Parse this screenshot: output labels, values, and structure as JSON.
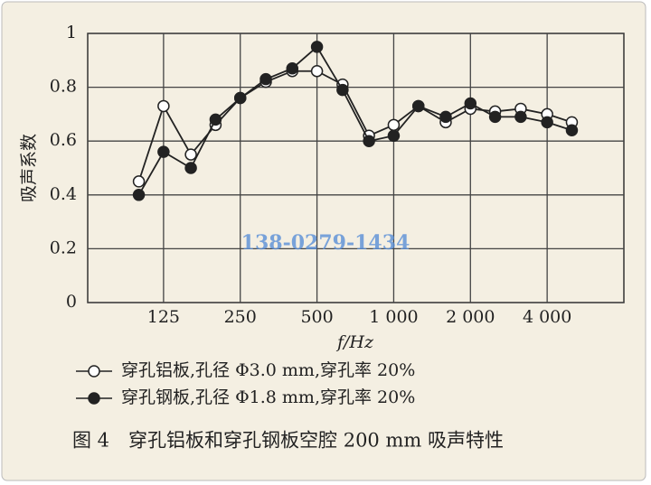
{
  "chart_data": {
    "type": "line",
    "x_label": "f/Hz",
    "y_label": "吸声系数",
    "x": [
      100,
      125,
      160,
      200,
      250,
      315,
      400,
      500,
      630,
      800,
      1000,
      1250,
      1600,
      2000,
      2500,
      3150,
      4000,
      5000
    ],
    "series": [
      {
        "name": "穿孔铝板,孔径 Φ3.0 mm,穿孔率 20%",
        "color": "#ffffff",
        "marker": "open",
        "values": [
          0.45,
          0.73,
          0.55,
          0.66,
          0.76,
          0.82,
          0.86,
          0.86,
          0.81,
          0.62,
          0.66,
          0.73,
          0.67,
          0.72,
          0.71,
          0.72,
          0.7,
          0.67
        ]
      },
      {
        "name": "穿孔钢板,孔径 Φ1.8 mm,穿孔率 20%",
        "color": "#222222",
        "marker": "filled",
        "values": [
          0.4,
          0.56,
          0.5,
          0.68,
          0.76,
          0.83,
          0.87,
          0.95,
          0.79,
          0.6,
          0.62,
          0.73,
          0.69,
          0.74,
          0.69,
          0.69,
          0.67,
          0.64
        ]
      }
    ],
    "xscale": "log",
    "xlim": [
      63,
      8000
    ],
    "xticks": [
      125,
      250,
      500,
      {
        "value": 1000,
        "label": "1 000"
      },
      {
        "value": 2000,
        "label": "2 000"
      },
      {
        "value": 4000,
        "label": "4 000"
      }
    ],
    "ylim": [
      0,
      1
    ],
    "yticks": [
      0,
      0.2,
      0.4,
      0.6,
      0.8,
      1
    ],
    "grid": true,
    "watermark": "138-0279-1434",
    "caption": "图 4　穿孔铝板和穿孔钢板空腔 200 mm 吸声特性"
  }
}
